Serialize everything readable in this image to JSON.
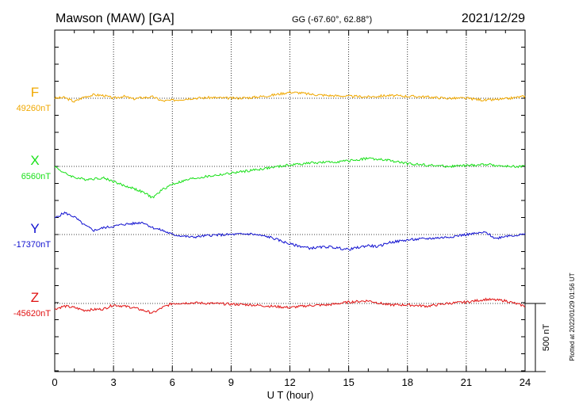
{
  "header": {
    "station": "Mawson (MAW)  [GA]",
    "coords": "GG (-67.60°,  62.88°)",
    "date": "2021/12/29"
  },
  "plotted_note": "Plotted at 2022/01/29 01:56 UT",
  "scale_label": "500 nT",
  "colors": {
    "F": "#f0a800",
    "X": "#18e018",
    "Y": "#1010d0",
    "Z": "#e01010",
    "axis": "#000000"
  },
  "chart_data": {
    "type": "line",
    "title": "",
    "xlabel": "U T (hour)",
    "ylabel": "",
    "xlim": [
      0,
      24
    ],
    "x_ticks": [
      "0",
      "3",
      "6",
      "9",
      "12",
      "15",
      "18",
      "21",
      "24"
    ],
    "grid": true,
    "scale_nT": 500,
    "series": [
      {
        "name": "F",
        "baseline": "49260nT",
        "x": [
          0,
          0.5,
          1,
          1.5,
          2,
          2.5,
          3,
          3.5,
          4,
          4.5,
          5,
          5.5,
          6,
          7,
          8,
          9,
          10,
          11,
          12,
          12.5,
          13,
          14,
          15,
          16,
          17,
          18,
          19,
          20,
          21,
          22,
          22.5,
          23,
          24
        ],
        "y": [
          0,
          5,
          -25,
          10,
          25,
          20,
          0,
          15,
          -5,
          5,
          10,
          -20,
          -15,
          0,
          5,
          0,
          5,
          20,
          45,
          40,
          30,
          20,
          15,
          10,
          20,
          15,
          10,
          0,
          0,
          -15,
          -10,
          -5,
          15
        ]
      },
      {
        "name": "X",
        "baseline": "6560nT",
        "x": [
          0,
          0.5,
          1,
          1.5,
          2,
          2.5,
          3,
          3.5,
          4,
          4.5,
          5,
          5.5,
          6,
          7,
          8,
          9,
          10,
          11,
          12,
          13,
          14,
          15,
          16,
          16.5,
          17,
          18,
          19,
          20,
          21,
          22,
          23,
          24
        ],
        "y": [
          0,
          -50,
          -80,
          -95,
          -90,
          -85,
          -110,
          -140,
          -160,
          -190,
          -230,
          -170,
          -130,
          -90,
          -70,
          -50,
          -30,
          -10,
          10,
          25,
          30,
          40,
          60,
          50,
          45,
          20,
          10,
          0,
          5,
          15,
          0,
          0
        ]
      },
      {
        "name": "Y",
        "baseline": "-17370nT",
        "x": [
          0,
          0.5,
          1,
          1.5,
          2,
          2.5,
          3,
          3.5,
          4,
          4.5,
          5,
          5.5,
          6,
          7,
          8,
          9,
          10,
          11,
          12,
          13,
          14,
          15,
          16,
          16.5,
          17,
          18,
          19,
          20,
          21,
          22,
          22.5,
          23,
          24
        ],
        "y": [
          120,
          160,
          130,
          70,
          30,
          50,
          60,
          75,
          80,
          90,
          50,
          30,
          0,
          -20,
          -5,
          0,
          5,
          -20,
          -70,
          -100,
          -90,
          -110,
          -80,
          -90,
          -60,
          -40,
          -30,
          -20,
          0,
          15,
          -30,
          -10,
          0
        ]
      },
      {
        "name": "Z",
        "baseline": "-45620nT",
        "x": [
          0,
          0.5,
          1,
          1.5,
          2,
          2.5,
          3,
          3.5,
          4,
          4.5,
          5,
          5.5,
          6,
          7,
          8,
          9,
          10,
          11,
          12,
          13,
          14,
          15,
          16,
          17,
          18,
          19,
          20,
          21,
          22,
          23,
          24
        ],
        "y": [
          -40,
          -20,
          -30,
          -50,
          -45,
          -40,
          -10,
          -20,
          -30,
          -50,
          -70,
          -30,
          0,
          5,
          0,
          -5,
          -10,
          -20,
          -30,
          -15,
          -10,
          10,
          20,
          -10,
          -10,
          -20,
          0,
          10,
          30,
          20,
          -20
        ]
      }
    ]
  }
}
